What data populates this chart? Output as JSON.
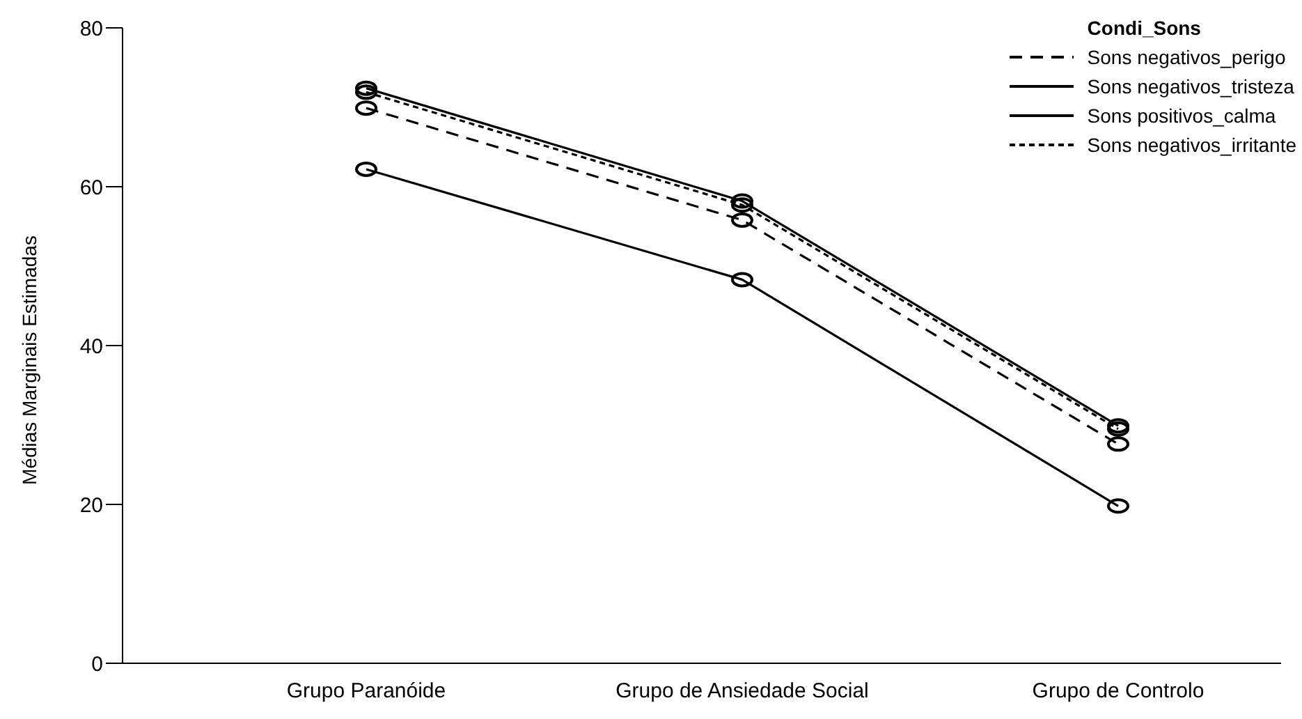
{
  "chart_data": {
    "type": "line",
    "ylabel": "Médias Marginais Estimadas",
    "legend_title": "Condi_Sons",
    "legend": "top right",
    "marker": "circle",
    "grid": false,
    "categories": [
      "Grupo Paranóide",
      "Grupo de Ansiedade Social",
      "Grupo de Controlo"
    ],
    "ylim": [
      0,
      80
    ],
    "yticks": [
      0,
      20,
      40,
      60,
      80
    ],
    "series": [
      {
        "name": "Sons negativos_perigo",
        "color": "#000000",
        "line_style": "dashed",
        "values": [
          69.9,
          55.8,
          27.6
        ]
      },
      {
        "name": "Sons negativos_tristeza",
        "color": "#000000",
        "line_style": "solid",
        "values": [
          72.4,
          58.2,
          29.9
        ]
      },
      {
        "name": "Sons positivos_calma",
        "color": "#000000",
        "line_style": "solid",
        "values": [
          62.2,
          48.3,
          19.8
        ]
      },
      {
        "name": "Sons negativos_irritante",
        "color": "#000000",
        "line_style": "dotted",
        "values": [
          71.9,
          57.7,
          29.5
        ]
      }
    ]
  }
}
